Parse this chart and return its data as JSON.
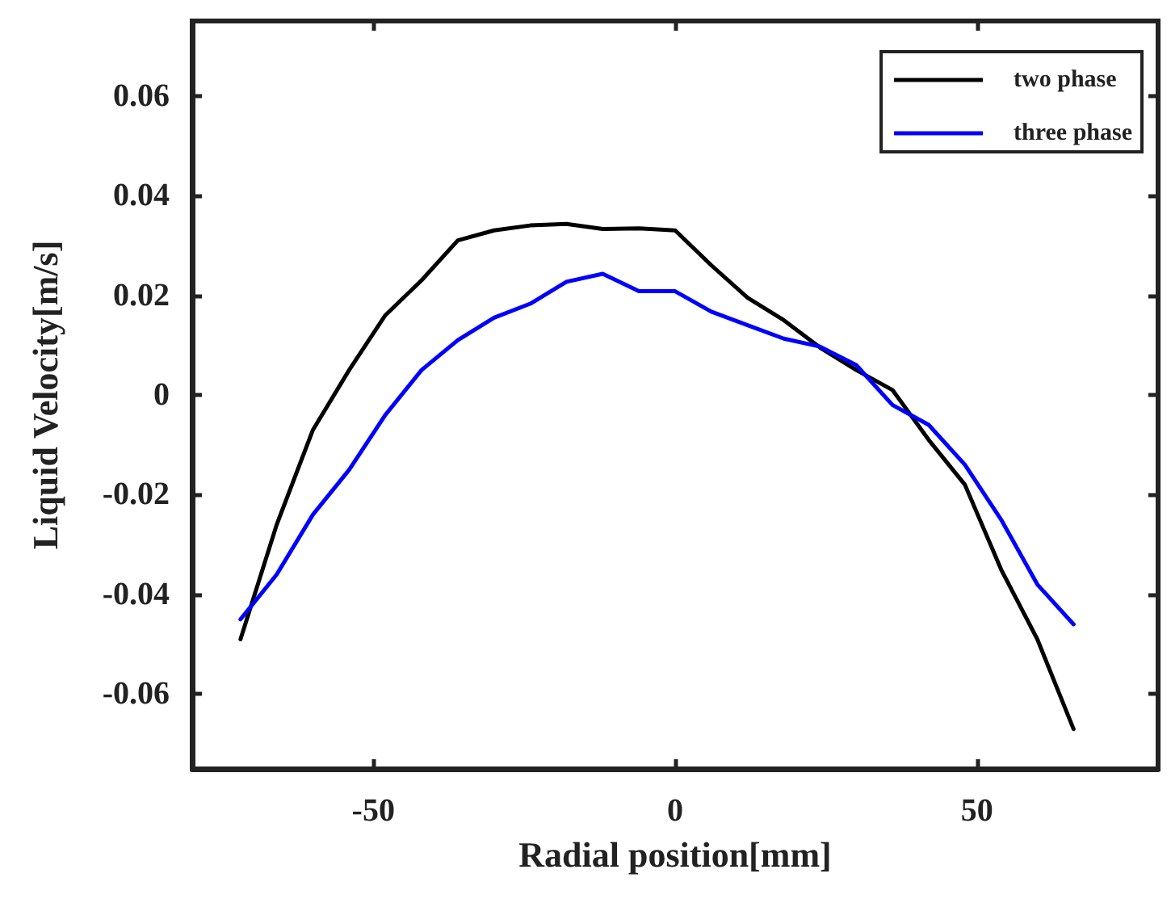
{
  "chart_data": {
    "type": "line",
    "xlabel": "Radial position[mm]",
    "ylabel": "Liquid Velocity[m/s]",
    "x": [
      -72,
      -66,
      -60,
      -54,
      -48,
      -42,
      -36,
      -30,
      -24,
      -18,
      -12,
      -6,
      0,
      6,
      12,
      18,
      24,
      30,
      36,
      42,
      48,
      54,
      60,
      66
    ],
    "series": [
      {
        "name": "two phase",
        "color": "#000000",
        "values": [
          -0.049,
          -0.026,
          -0.007,
          0.005,
          0.016,
          0.023,
          0.031,
          0.033,
          0.034,
          0.0343,
          0.0333,
          0.0334,
          0.033,
          0.026,
          0.0195,
          0.015,
          0.0095,
          0.005,
          0.001,
          -0.009,
          -0.018,
          -0.035,
          -0.049,
          -0.067
        ]
      },
      {
        "name": "three phase",
        "color": "#0000ff",
        "values": [
          -0.045,
          -0.036,
          -0.024,
          -0.015,
          -0.004,
          0.005,
          0.011,
          0.0155,
          0.0183,
          0.0227,
          0.0243,
          0.0208,
          0.0208,
          0.0167,
          0.014,
          0.0113,
          0.0097,
          0.006,
          -0.002,
          -0.006,
          -0.014,
          -0.025,
          -0.038,
          -0.046
        ]
      }
    ],
    "xlim": [
      -80,
      80
    ],
    "xticks": [
      -50,
      0,
      50
    ],
    "ylim": [
      -0.075,
      0.075
    ],
    "yticks": [
      -0.06,
      -0.04,
      -0.02,
      0,
      0.02,
      0.04,
      0.06
    ],
    "grid": false,
    "legend": "top right",
    "marker": "none",
    "line_style": "solid"
  }
}
